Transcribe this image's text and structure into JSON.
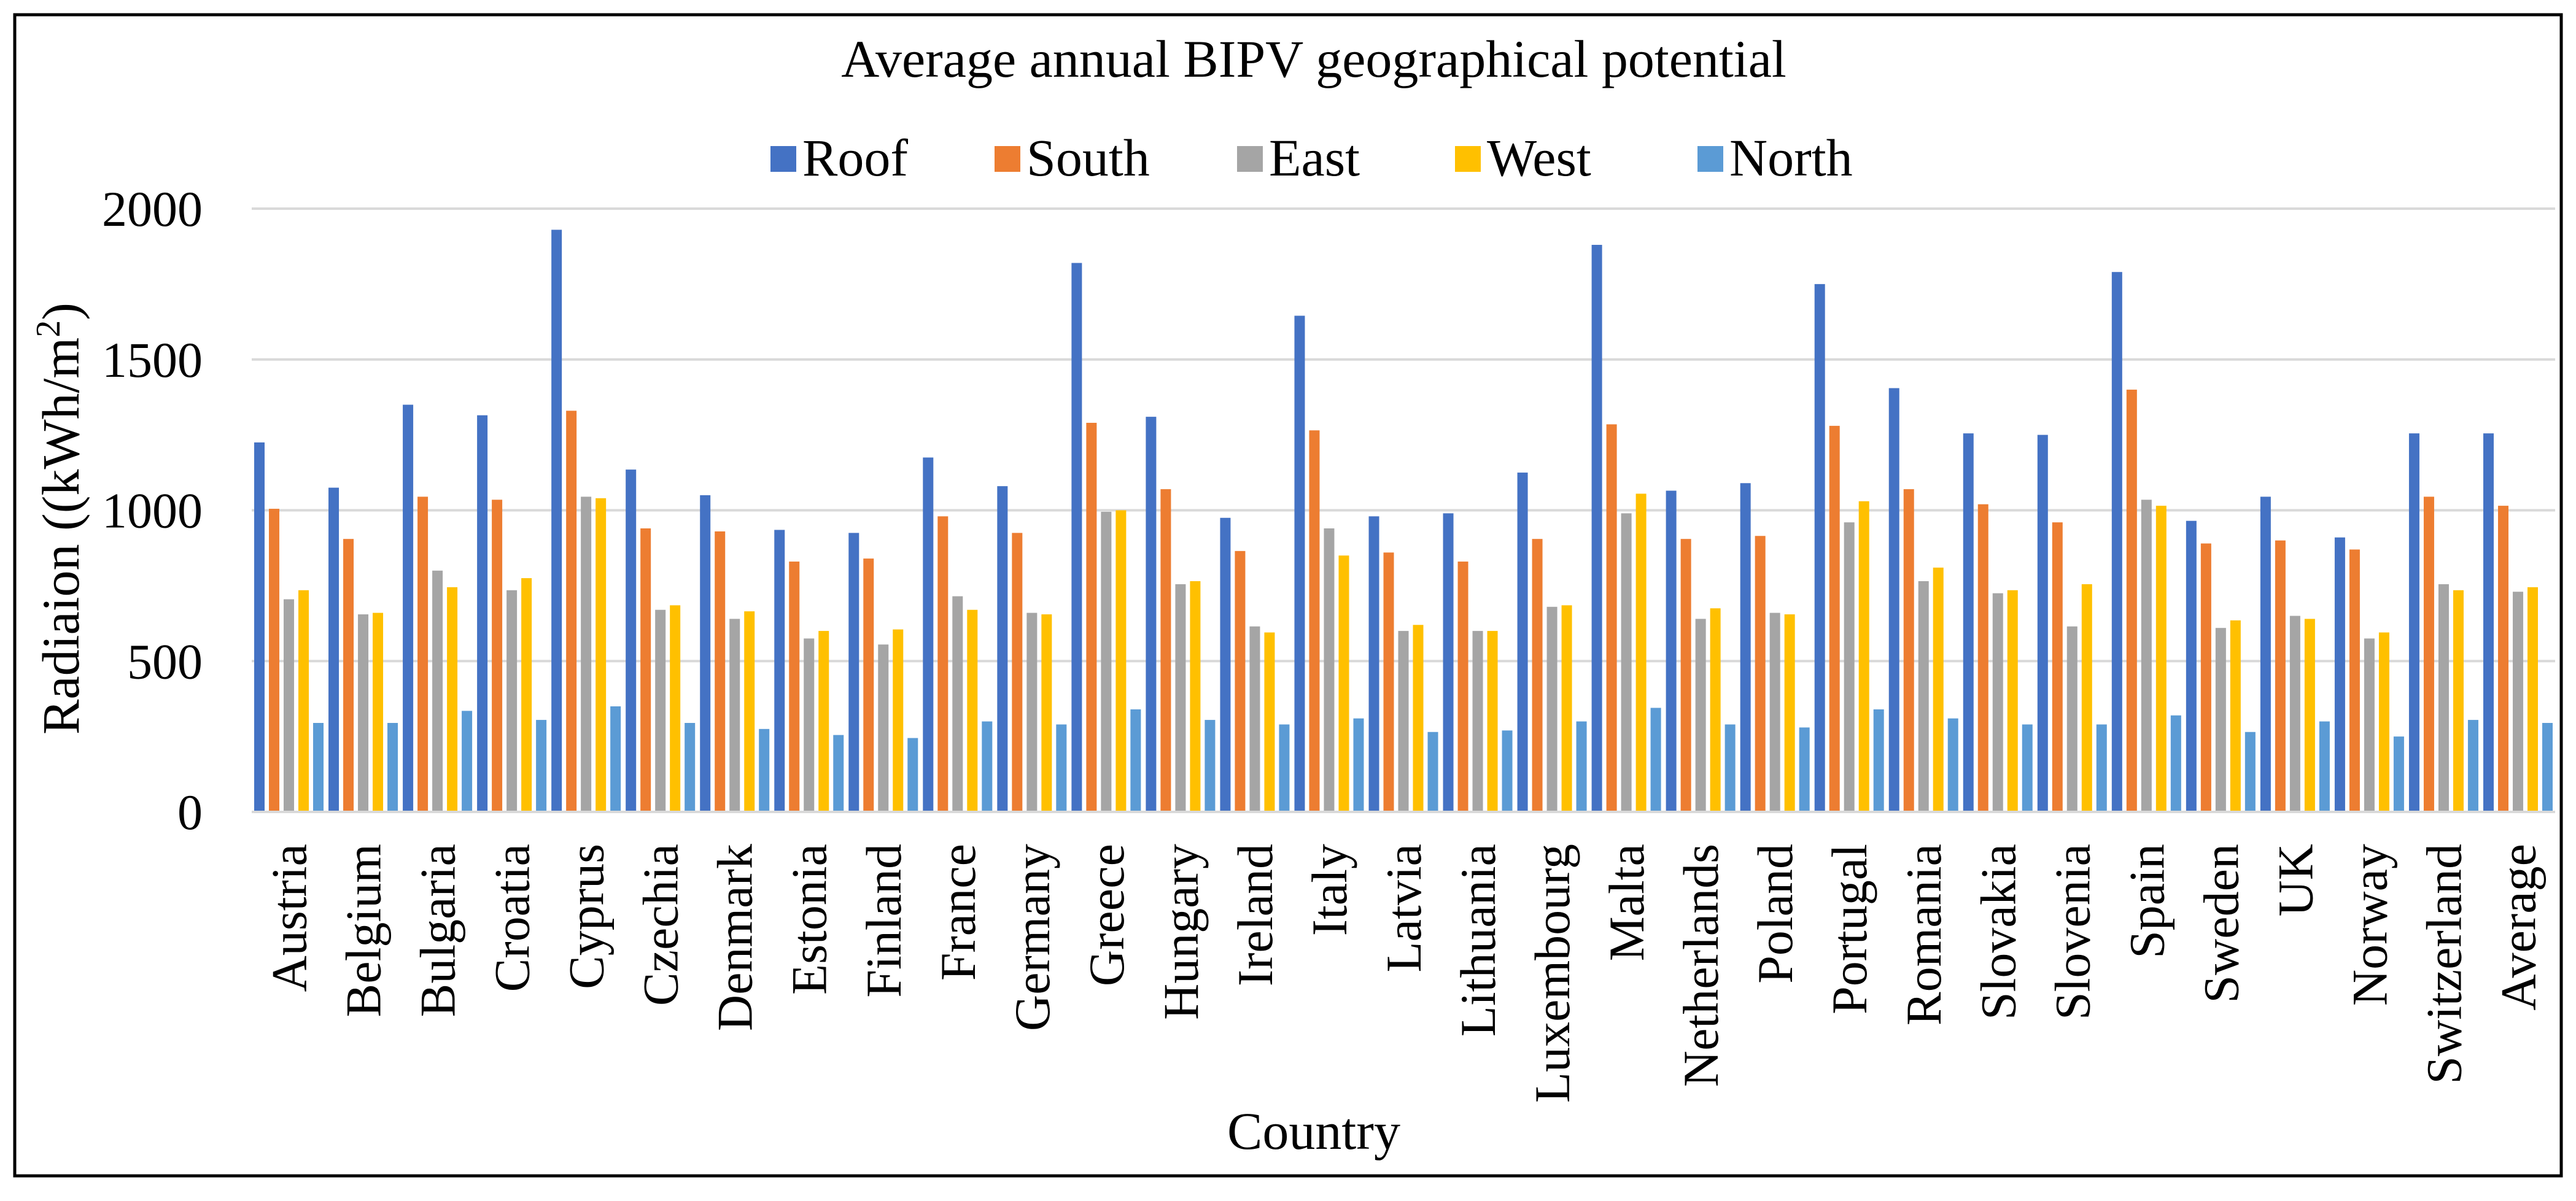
{
  "chart_data": {
    "type": "bar",
    "title": "Average annual BIPV geographical potential",
    "xlabel": "Country",
    "ylabel": "Radiaion ((kWh/m",
    "ylabel_sup": "2",
    "ylabel_end": ")",
    "ylim": [
      0,
      2000
    ],
    "yticks": [
      0,
      500,
      1000,
      1500,
      2000
    ],
    "ytick_labels": [
      "0",
      "500",
      "1000",
      "1500",
      "2000"
    ],
    "grid": true,
    "legend_position": "top",
    "categories": [
      "Austria",
      "Belgium",
      "Bulgaria",
      "Croatia",
      "Cyprus",
      "Czechia",
      "Denmark",
      "Estonia",
      "Finland",
      "France",
      "Germany",
      "Greece",
      "Hungary",
      "Ireland",
      "Italy",
      "Latvia",
      "Lithuania",
      "Luxembourg",
      "Malta",
      "Netherlands",
      "Poland",
      "Portugal",
      "Romania",
      "Slovakia",
      "Slovenia",
      "Spain",
      "Sweden",
      "UK",
      "Norway",
      "Switzerland",
      "Average"
    ],
    "series": [
      {
        "name": "Roof",
        "color": "#4472C4",
        "values": [
          1225,
          1075,
          1350,
          1315,
          1930,
          1135,
          1050,
          935,
          925,
          1175,
          1080,
          1820,
          1310,
          975,
          1645,
          980,
          990,
          1125,
          1880,
          1065,
          1090,
          1750,
          1405,
          1255,
          1250,
          1790,
          965,
          1045,
          910,
          1255,
          1255
        ]
      },
      {
        "name": "South",
        "color": "#ED7D31",
        "values": [
          1005,
          905,
          1045,
          1035,
          1330,
          940,
          930,
          830,
          840,
          980,
          925,
          1290,
          1070,
          865,
          1265,
          860,
          830,
          905,
          1285,
          905,
          915,
          1280,
          1070,
          1020,
          960,
          1400,
          890,
          900,
          870,
          1045,
          1015
        ]
      },
      {
        "name": "East",
        "color": "#A5A5A5",
        "values": [
          705,
          655,
          800,
          735,
          1045,
          670,
          640,
          575,
          555,
          715,
          660,
          995,
          755,
          615,
          940,
          600,
          600,
          680,
          990,
          640,
          660,
          960,
          765,
          725,
          615,
          1035,
          610,
          650,
          575,
          755,
          730
        ]
      },
      {
        "name": "West",
        "color": "#FFC000",
        "values": [
          735,
          660,
          745,
          775,
          1040,
          685,
          665,
          600,
          605,
          670,
          655,
          1000,
          765,
          595,
          850,
          620,
          600,
          685,
          1055,
          675,
          655,
          1030,
          810,
          735,
          755,
          1015,
          635,
          640,
          595,
          735,
          745
        ]
      },
      {
        "name": "North",
        "color": "#5B9BD5",
        "values": [
          295,
          295,
          335,
          305,
          350,
          295,
          275,
          255,
          245,
          300,
          290,
          340,
          305,
          290,
          310,
          265,
          270,
          300,
          345,
          290,
          280,
          340,
          310,
          290,
          290,
          320,
          265,
          300,
          250,
          305,
          295
        ]
      }
    ]
  }
}
